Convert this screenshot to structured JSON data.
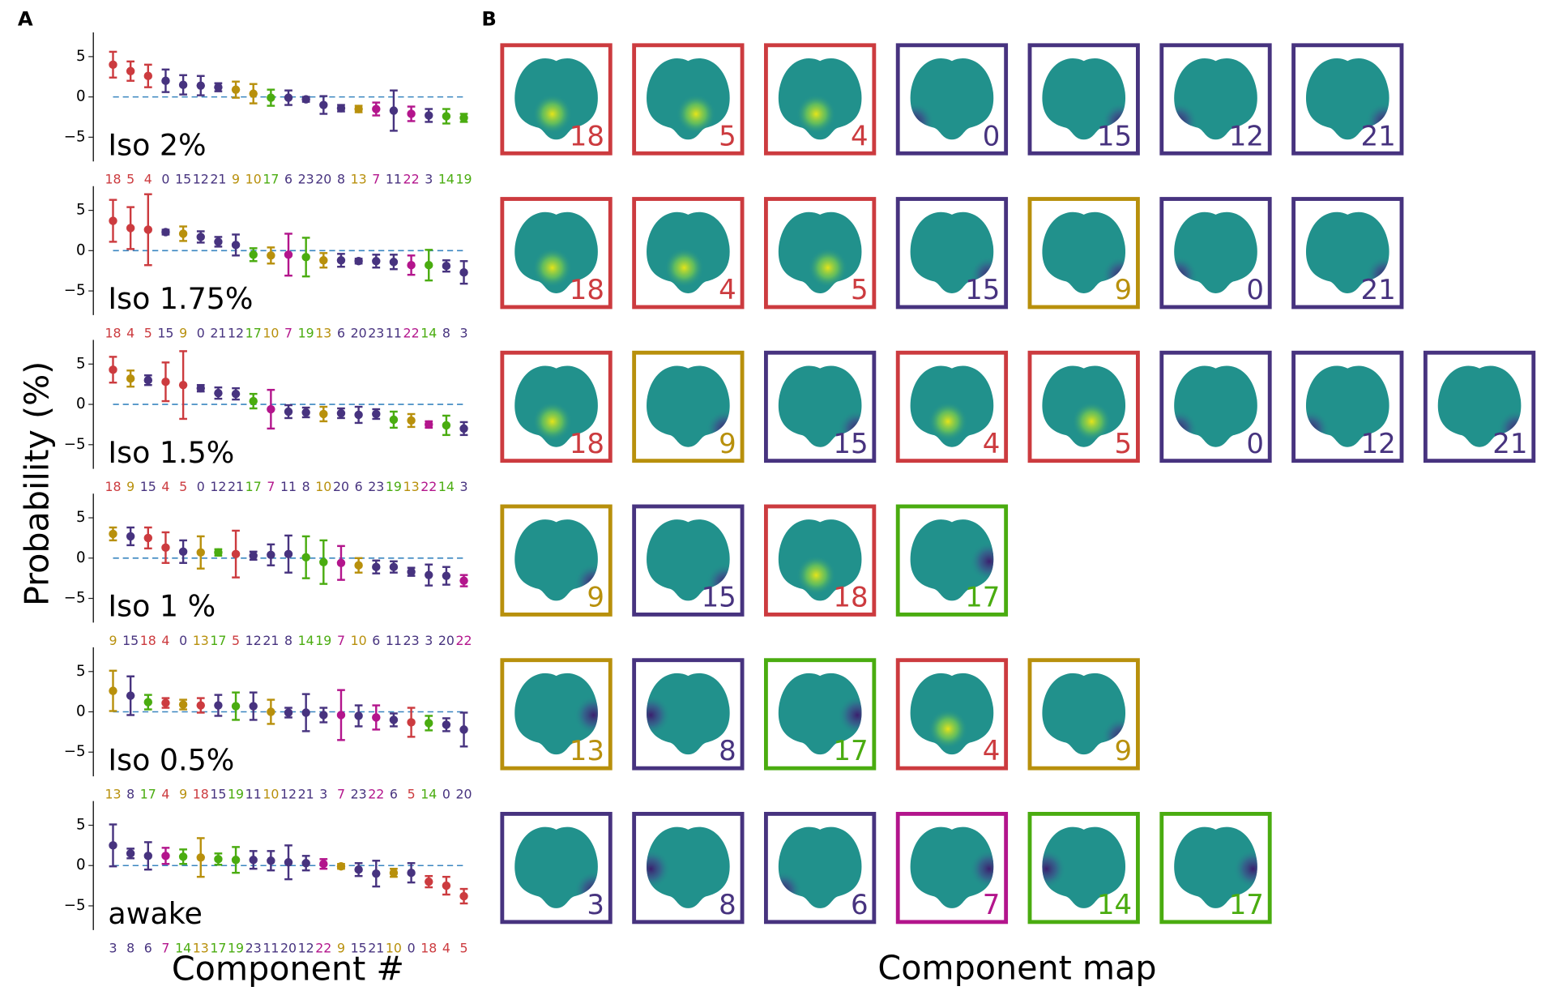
{
  "panel_a": {
    "label": "A",
    "y_label": "Probability (%)",
    "x_label": "Component #"
  },
  "panel_b": {
    "label": "B",
    "x_label": "Component map",
    "rows": [
      [
        18,
        5,
        4,
        0,
        15,
        12,
        21
      ],
      [
        18,
        4,
        5,
        15,
        9,
        0,
        21
      ],
      [
        18,
        9,
        15,
        4,
        5,
        0,
        12,
        21
      ],
      [
        9,
        15,
        18,
        17
      ],
      [
        13,
        8,
        17,
        4,
        9
      ],
      [
        3,
        8,
        6,
        7,
        14,
        17
      ]
    ]
  },
  "component_colors": {
    "18": "#cc3b3f",
    "5": "#cc3b3f",
    "4": "#cc3b3f",
    "0": "#47337f",
    "15": "#47337f",
    "12": "#47337f",
    "21": "#47337f",
    "6": "#47337f",
    "23": "#47337f",
    "20": "#47337f",
    "8": "#47337f",
    "3": "#47337f",
    "11": "#47337f",
    "9": "#b8900c",
    "10": "#b8900c",
    "13": "#b8900c",
    "17": "#4aac10",
    "14": "#4aac10",
    "19": "#4aac10",
    "7": "#b3158c",
    "22": "#b3158c"
  },
  "chart_data": [
    {
      "type": "errorbar",
      "title": "Iso 2%",
      "ylim": [
        -8,
        8
      ],
      "yticks": [
        {
          "value": -5,
          "label": "−5"
        },
        0,
        5
      ],
      "hline": 0,
      "categories": [
        "18",
        "5",
        "4",
        "0",
        "15",
        "12",
        "21",
        "9",
        "10",
        "17",
        "6",
        "23",
        "20",
        "8",
        "13",
        "7",
        "11",
        "22",
        "3",
        "14",
        "19"
      ],
      "values": [
        4.0,
        3.2,
        2.6,
        2.0,
        1.5,
        1.4,
        1.2,
        0.9,
        0.4,
        -0.1,
        -0.1,
        -0.3,
        -1.0,
        -1.4,
        -1.5,
        -1.5,
        -1.7,
        -2.1,
        -2.3,
        -2.4,
        -2.6
      ],
      "errors": [
        1.6,
        1.2,
        1.4,
        1.4,
        1.2,
        1.2,
        0.5,
        1.0,
        1.2,
        1.0,
        0.9,
        0.3,
        1.1,
        0.4,
        0.4,
        0.8,
        2.5,
        0.9,
        0.8,
        0.9,
        0.5
      ]
    },
    {
      "type": "errorbar",
      "title": "Iso 1.75%",
      "ylim": [
        -8,
        8
      ],
      "yticks": [
        {
          "value": -5,
          "label": "−5"
        },
        0,
        5
      ],
      "hline": 0,
      "categories": [
        "18",
        "4",
        "5",
        "15",
        "9",
        "0",
        "21",
        "12",
        "17",
        "10",
        "7",
        "19",
        "13",
        "6",
        "20",
        "23",
        "11",
        "22",
        "14",
        "8",
        "3"
      ],
      "values": [
        3.7,
        2.8,
        2.6,
        2.3,
        2.1,
        1.7,
        1.1,
        0.7,
        -0.5,
        -0.6,
        -0.5,
        -0.8,
        -1.2,
        -1.2,
        -1.3,
        -1.3,
        -1.4,
        -1.8,
        -1.8,
        -1.9,
        -2.7
      ],
      "errors": [
        2.6,
        2.6,
        4.4,
        0.3,
        0.9,
        0.7,
        0.6,
        1.3,
        0.8,
        1.0,
        2.6,
        2.4,
        0.9,
        0.8,
        0.3,
        0.8,
        0.9,
        1.2,
        1.9,
        0.7,
        1.4
      ]
    },
    {
      "type": "errorbar",
      "title": "Iso 1.5%",
      "ylim": [
        -8,
        8
      ],
      "yticks": [
        {
          "value": -5,
          "label": "−5"
        },
        0,
        5
      ],
      "hline": 0,
      "categories": [
        "18",
        "9",
        "15",
        "4",
        "5",
        "0",
        "12",
        "21",
        "17",
        "7",
        "11",
        "8",
        "10",
        "20",
        "6",
        "23",
        "19",
        "13",
        "22",
        "14",
        "3"
      ],
      "values": [
        4.3,
        3.2,
        3.0,
        2.8,
        2.4,
        2.0,
        1.4,
        1.3,
        0.4,
        -0.6,
        -0.9,
        -1.0,
        -1.2,
        -1.1,
        -1.3,
        -1.2,
        -1.9,
        -2.0,
        -2.5,
        -2.6,
        -3.0
      ],
      "errors": [
        1.6,
        1.0,
        0.6,
        2.4,
        4.2,
        0.4,
        0.7,
        0.7,
        0.9,
        2.4,
        0.8,
        0.6,
        0.9,
        0.6,
        1.0,
        0.6,
        1.0,
        0.8,
        0.4,
        1.2,
        0.8
      ]
    },
    {
      "type": "errorbar",
      "title": "Iso 1 %",
      "ylim": [
        -8,
        8
      ],
      "yticks": [
        {
          "value": -5,
          "label": "−5"
        },
        0,
        5
      ],
      "hline": 0,
      "categories": [
        "9",
        "15",
        "18",
        "4",
        "0",
        "13",
        "17",
        "5",
        "12",
        "21",
        "8",
        "14",
        "19",
        "7",
        "10",
        "6",
        "11",
        "23",
        "3",
        "20",
        "22"
      ],
      "values": [
        3.0,
        2.7,
        2.5,
        1.3,
        0.8,
        0.7,
        0.7,
        0.5,
        0.3,
        0.4,
        0.5,
        0.1,
        -0.5,
        -0.6,
        -0.9,
        -1.1,
        -1.1,
        -1.7,
        -2.1,
        -2.2,
        -2.8
      ],
      "errors": [
        0.8,
        1.1,
        1.3,
        1.9,
        1.4,
        2.0,
        0.4,
        2.9,
        0.5,
        1.3,
        2.3,
        2.6,
        2.7,
        2.1,
        0.9,
        0.8,
        0.7,
        0.5,
        1.3,
        1.1,
        0.7
      ]
    },
    {
      "type": "errorbar",
      "title": "Iso 0.5%",
      "ylim": [
        -8,
        8
      ],
      "yticks": [
        {
          "value": -5,
          "label": "−5"
        },
        0,
        5
      ],
      "hline": 0,
      "categories": [
        "13",
        "8",
        "17",
        "4",
        "9",
        "18",
        "15",
        "19",
        "11",
        "10",
        "12",
        "21",
        "3",
        "7",
        "23",
        "22",
        "6",
        "5",
        "14",
        "0",
        "20"
      ],
      "values": [
        2.6,
        2.0,
        1.2,
        1.1,
        0.9,
        0.8,
        0.8,
        0.7,
        0.7,
        0.0,
        -0.1,
        -0.1,
        -0.4,
        -0.4,
        -0.5,
        -0.7,
        -1.0,
        -1.3,
        -1.4,
        -1.6,
        -2.2
      ],
      "errors": [
        2.5,
        2.4,
        0.9,
        0.6,
        0.6,
        0.9,
        1.3,
        1.7,
        1.7,
        1.5,
        0.6,
        2.3,
        0.9,
        3.1,
        1.3,
        1.5,
        0.8,
        1.8,
        0.9,
        0.8,
        2.1
      ]
    },
    {
      "type": "errorbar",
      "title": "awake",
      "ylim": [
        -8,
        8
      ],
      "yticks": [
        {
          "value": -5,
          "label": "−5"
        },
        0,
        5
      ],
      "hline": 0,
      "categories": [
        "3",
        "8",
        "6",
        "7",
        "14",
        "13",
        "17",
        "19",
        "23",
        "11",
        "20",
        "12",
        "22",
        "9",
        "15",
        "21",
        "10",
        "0",
        "18",
        "4",
        "5"
      ],
      "values": [
        2.5,
        1.5,
        1.2,
        1.2,
        1.1,
        1.0,
        0.8,
        0.7,
        0.7,
        0.6,
        0.4,
        0.3,
        0.2,
        -0.1,
        -0.5,
        -1.0,
        -0.9,
        -0.9,
        -2.0,
        -2.5,
        -3.8
      ],
      "errors": [
        2.6,
        0.6,
        1.7,
        1.0,
        0.9,
        2.4,
        0.7,
        1.6,
        1.1,
        1.2,
        2.1,
        0.9,
        0.6,
        0.3,
        0.8,
        1.6,
        0.5,
        1.2,
        0.7,
        1.1,
        0.9
      ]
    }
  ]
}
